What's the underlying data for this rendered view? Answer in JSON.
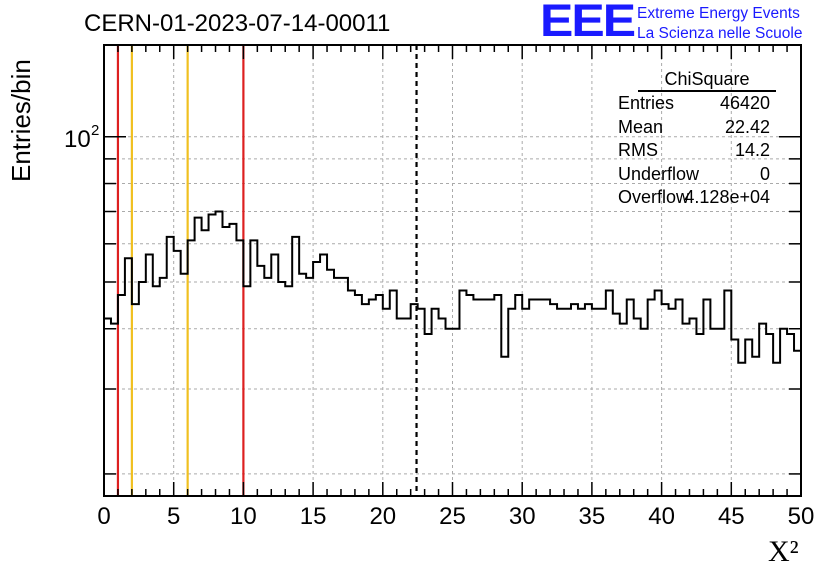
{
  "header": {
    "run_title": "CERN-01-2023-07-14-00011",
    "logo_mark": "EEE",
    "logo_line1": "Extreme Energy Events",
    "logo_line2": "La Scienza nelle Scuole"
  },
  "stats_box": {
    "title": "ChiSquare",
    "rows": [
      {
        "key": "Entries",
        "value": "46420"
      },
      {
        "key": "Mean",
        "value": "22.42"
      },
      {
        "key": "RMS",
        "value": "14.2"
      },
      {
        "key": "Underflow",
        "value": "0"
      },
      {
        "key": "Overflow",
        "value": "4.128e+04"
      }
    ]
  },
  "colors": {
    "histogram": "#000000",
    "red_lines": "#dd2020",
    "yellow_lines": "#f0c020",
    "mean_line": "#000000",
    "grid": "#aaaaaa"
  },
  "chart_data": {
    "type": "histogram",
    "title": "CERN-01-2023-07-14-00011",
    "xlabel": "X²",
    "ylabel": "Entries/bin",
    "xlim": [
      0,
      50
    ],
    "ylim": [
      18,
      155
    ],
    "y_scale": "log",
    "grid": true,
    "x_tick_labels": [
      "0",
      "5",
      "10",
      "15",
      "20",
      "25",
      "30",
      "35",
      "40",
      "45",
      "50"
    ],
    "y_tick_labels": [
      {
        "base": "10",
        "exp": "2",
        "value": 100
      }
    ],
    "bin_width": 0.5,
    "bin_values": [
      42,
      41,
      47,
      56,
      45,
      50,
      57,
      49,
      51,
      62,
      58,
      52,
      61,
      68,
      64,
      69,
      70,
      65,
      66,
      61,
      49,
      61,
      54,
      51,
      57,
      50,
      49,
      62,
      52,
      51,
      55,
      57,
      53,
      51,
      51,
      48,
      47,
      45,
      46,
      47,
      44,
      48,
      42,
      42,
      45,
      44,
      39,
      44,
      42,
      40,
      40,
      48,
      47,
      46,
      46,
      46,
      47,
      35,
      44,
      47,
      44,
      46,
      46,
      46,
      45,
      44,
      44,
      45,
      44,
      45,
      44,
      44,
      48,
      43,
      41,
      46,
      42,
      40,
      46,
      48,
      45,
      44,
      46,
      41,
      42,
      39,
      46,
      40,
      40,
      48,
      38,
      34,
      38,
      35,
      41,
      39,
      34,
      40,
      39,
      36
    ],
    "vertical_lines": [
      {
        "x": 1,
        "color": "red",
        "style": "solid"
      },
      {
        "x": 2,
        "color": "yellow",
        "style": "solid"
      },
      {
        "x": 6,
        "color": "yellow",
        "style": "solid"
      },
      {
        "x": 10,
        "color": "red",
        "style": "solid"
      },
      {
        "x": 22.42,
        "color": "black",
        "style": "dashed"
      }
    ],
    "legend": "top-right"
  }
}
